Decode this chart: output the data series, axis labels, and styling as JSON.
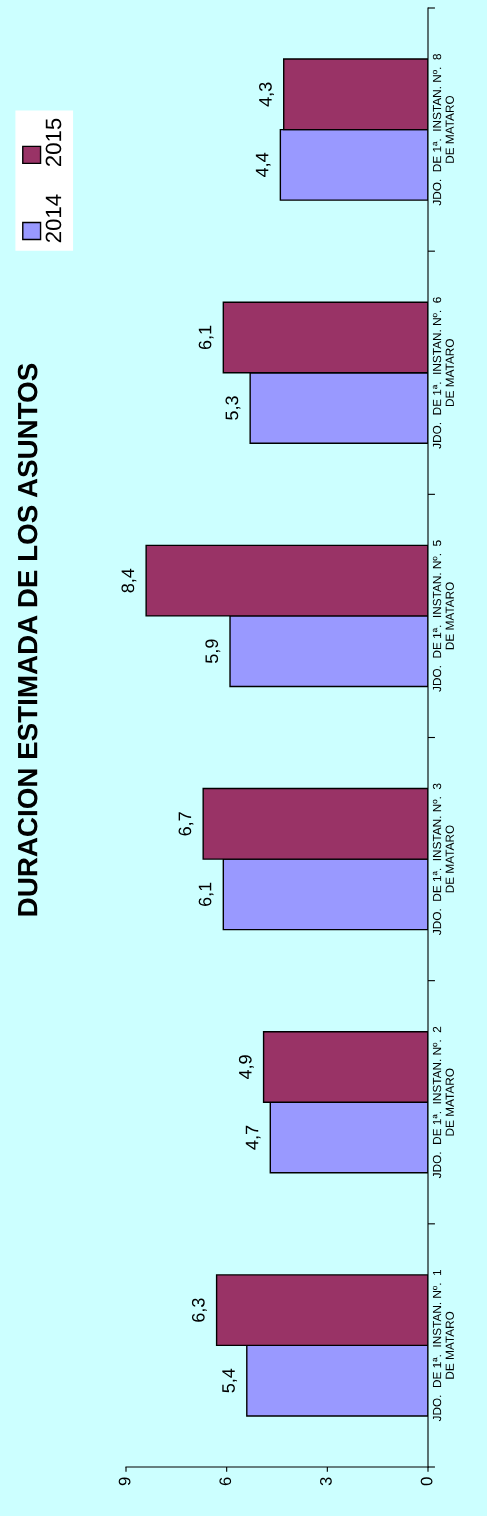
{
  "chart_data": {
    "type": "bar",
    "orientation": "horizontal",
    "title": "DURACION ESTIMADA DE LOS ASUNTOS",
    "categories": [
      "JDO.  DE 1ª.  INSTAN. Nº.  8\nDE MATARO",
      "JDO.  DE 1ª.  INSTAN. Nº.  6\nDE MATARO",
      "JDO.  DE 1ª.  INSTAN. Nº.  5\nDE MATARO",
      "JDO.  DE 1ª.  INSTAN. Nº.  3\nDE MATARO",
      "JDO.  DE 1ª.  INSTAN. Nº.  2\nDE MATARO",
      "JDO.  DE 1ª.  INSTAN. Nº.  1\nDE MATARO"
    ],
    "series": [
      {
        "name": "2014",
        "color": "#9999ff",
        "values": [
          4.4,
          5.3,
          5.9,
          6.1,
          4.7,
          5.4
        ],
        "value_labels": [
          "4,4",
          "5,3",
          "5,9",
          "6,1",
          "4,7",
          "5,4"
        ]
      },
      {
        "name": "2015",
        "color": "#993366",
        "values": [
          4.3,
          6.1,
          8.4,
          6.7,
          4.9,
          6.3
        ],
        "value_labels": [
          "4,3",
          "6,1",
          "8,4",
          "6,7",
          "4,9",
          "6,3"
        ]
      }
    ],
    "xlim": [
      9,
      0
    ],
    "xticks": [
      0,
      3,
      6,
      9
    ],
    "grid": false,
    "legend": "top left"
  }
}
